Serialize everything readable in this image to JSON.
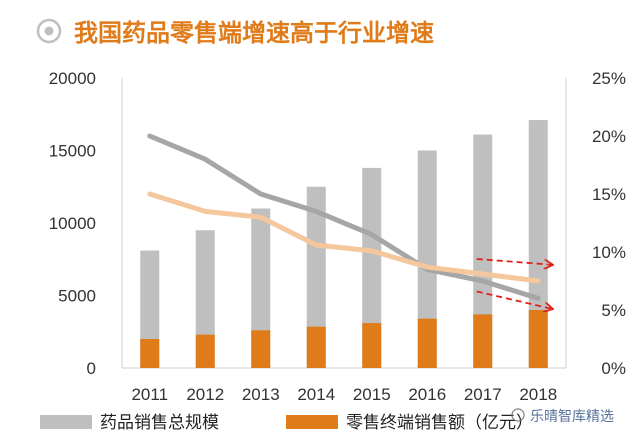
{
  "chart_data": {
    "type": "bar",
    "title": "我国药品零售端增速高于行业增速",
    "categories": [
      "2011",
      "2012",
      "2013",
      "2014",
      "2015",
      "2016",
      "2017",
      "2018"
    ],
    "left_axis": {
      "min": 0,
      "max": 20000,
      "ticks": [
        "0",
        "5000",
        "10000",
        "15000",
        "20000"
      ]
    },
    "right_axis": {
      "min": 0,
      "max": 0.25,
      "ticks": [
        "0%",
        "5%",
        "10%",
        "15%",
        "20%",
        "25%"
      ]
    },
    "series": [
      {
        "name": "药品销售总规模",
        "kind": "bar",
        "axis": "left",
        "color": "#bfbfbf",
        "values": [
          8100,
          9500,
          11000,
          12500,
          13800,
          15000,
          16100,
          17100
        ]
      },
      {
        "name": "零售终端销售额（亿元）",
        "kind": "bar",
        "axis": "left",
        "color": "#e07b1a",
        "values": [
          2000,
          2300,
          2600,
          2850,
          3100,
          3400,
          3700,
          4000
        ]
      },
      {
        "name": "total-growth",
        "kind": "line",
        "axis": "right",
        "color": "#a6a6a6",
        "values": [
          0.2,
          0.18,
          0.15,
          0.135,
          0.115,
          0.085,
          0.075,
          0.06
        ]
      },
      {
        "name": "retail-growth",
        "kind": "line",
        "axis": "right",
        "color": "#f4c79c",
        "values": [
          0.15,
          0.135,
          0.13,
          0.106,
          0.101,
          0.087,
          0.081,
          0.075
        ]
      }
    ],
    "annotations": [
      {
        "type": "arrow",
        "style": "dashed",
        "color": "#e0201b",
        "from_x": "2017",
        "from_y": 0.094,
        "to_y": 0.089
      },
      {
        "type": "arrow",
        "style": "dashed",
        "color": "#e0201b",
        "from_x": "2017",
        "from_y": 0.066,
        "to_y": 0.051
      }
    ],
    "legend": [
      {
        "label": "药品销售总规模",
        "color": "#bfbfbf"
      },
      {
        "label": "零售终端销售额（亿元）",
        "color": "#e07b1a"
      }
    ],
    "legend_position": "bottom",
    "title_color": "#e07b1a"
  },
  "watermark": "乐晴智库精选"
}
